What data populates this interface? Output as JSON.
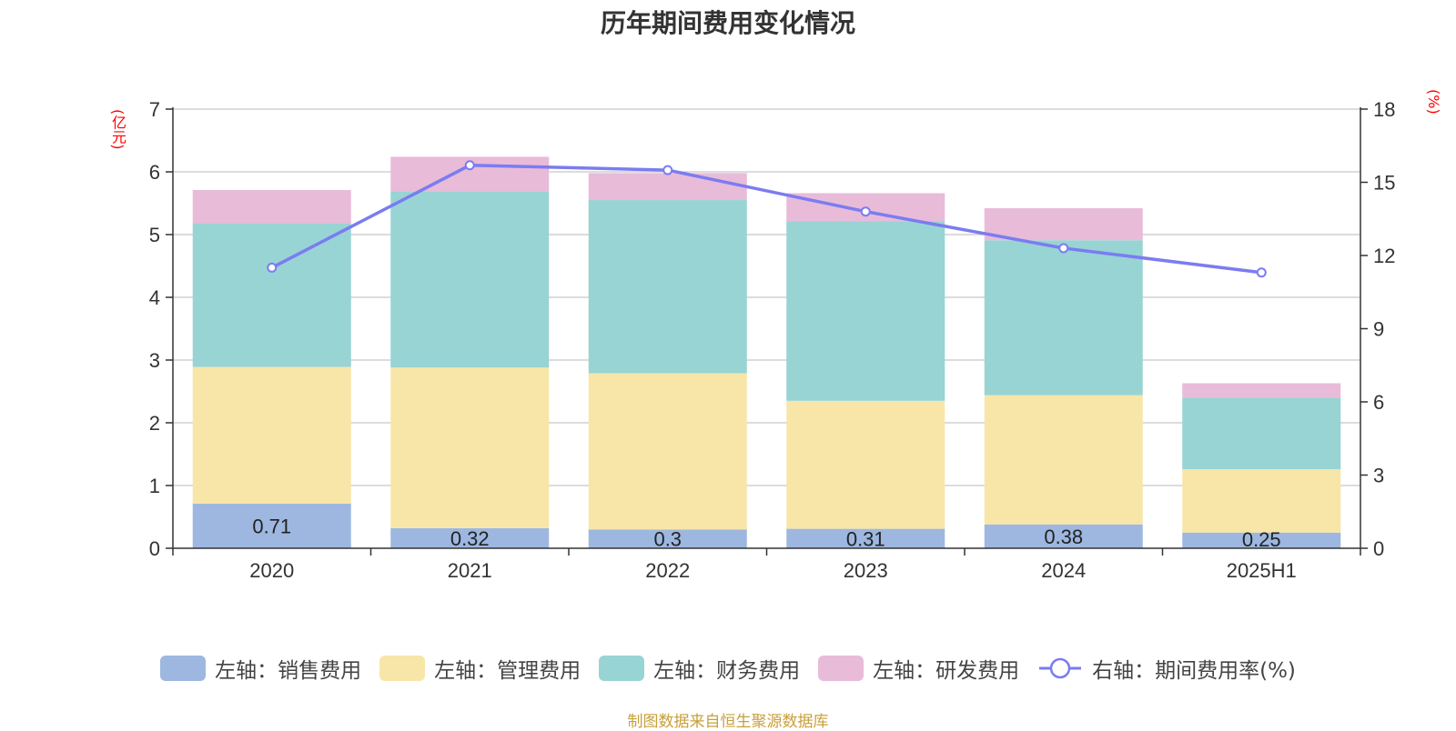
{
  "chart_data": {
    "type": "bar",
    "title": "历年期间费用变化情况",
    "categories": [
      "2020",
      "2021",
      "2022",
      "2023",
      "2024",
      "2025H1"
    ],
    "y_left": {
      "unit_label": "(亿元)",
      "ylim": [
        0,
        7
      ],
      "ticks": [
        "0",
        "1",
        "2",
        "3",
        "4",
        "5",
        "6",
        "7"
      ]
    },
    "y_right": {
      "unit_label": "(%)",
      "ylim": [
        0,
        18
      ],
      "ticks": [
        "0",
        "3",
        "6",
        "9",
        "12",
        "15",
        "18"
      ]
    },
    "series": [
      {
        "name": "左轴：销售费用",
        "values": [
          0.71,
          0.32,
          0.3,
          0.31,
          0.38,
          0.25
        ],
        "color": "#9db7e0",
        "axis": "left",
        "show_labels": true
      },
      {
        "name": "左轴：管理费用",
        "values": [
          2.18,
          2.56,
          2.49,
          2.04,
          2.06,
          1.01
        ],
        "color": "#f7e6a8",
        "axis": "left"
      },
      {
        "name": "左轴：财务费用",
        "values": [
          2.29,
          2.81,
          2.76,
          2.86,
          2.47,
          1.14
        ],
        "color": "#98d4d4",
        "axis": "left"
      },
      {
        "name": "左轴：研发费用",
        "values": [
          0.53,
          0.55,
          0.43,
          0.45,
          0.51,
          0.23
        ],
        "color": "#e8bbd9",
        "axis": "left"
      },
      {
        "name": "右轴：期间费用率(%)",
        "type": "line",
        "values": [
          11.5,
          15.7,
          15.5,
          13.8,
          12.3,
          11.3
        ],
        "color": "#7b7cf0",
        "axis": "right"
      }
    ],
    "grid": true,
    "legend_position": "bottom"
  },
  "source_note": "制图数据来自恒生聚源数据库"
}
